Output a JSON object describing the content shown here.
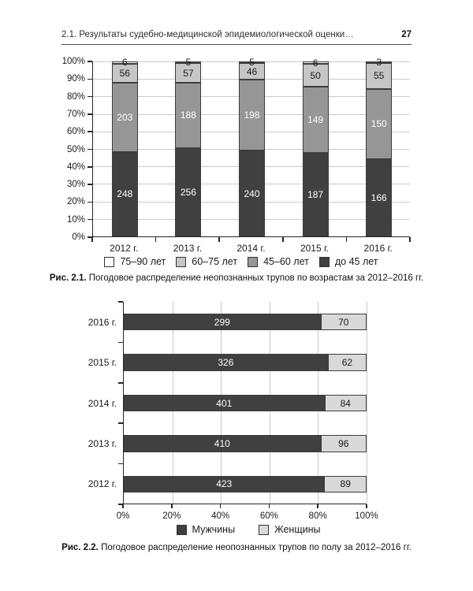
{
  "header": {
    "title": "2.1. Результаты судебно-медицинской эпидемиологической оценки…",
    "page_number": "27"
  },
  "captions": {
    "fig1_label": "Рис. 2.1.",
    "fig1_text": "Погодовое распределение неопознанных трупов по возрастам за 2012–2016 гг.",
    "fig2_label": "Рис. 2.2.",
    "fig2_text": "Погодовое распределение неопознанных трупов по полу за 2012–2016 гг."
  },
  "colors": {
    "dark": "#404040",
    "medium": "#969696",
    "light": "#c6c6c6",
    "white": "#ffffff",
    "female": "#d9d9d9",
    "gridline": "#cbcbcb",
    "axis": "#262626",
    "segment_border": "#3d3d3d"
  },
  "chart_data": [
    {
      "type": "bar",
      "variant": "stacked-100-vertical",
      "title": "",
      "categories": [
        "2012 г.",
        "2013 г.",
        "2014 г.",
        "2015 г.",
        "2016 г."
      ],
      "series": [
        {
          "name": "до 45 лет",
          "color": "#404040",
          "label_color": "#ffffff",
          "values": [
            248,
            256,
            240,
            187,
            166
          ]
        },
        {
          "name": "45–60 лет",
          "color": "#969696",
          "label_color": "#ffffff",
          "values": [
            203,
            188,
            198,
            149,
            150
          ]
        },
        {
          "name": "60–75 лет",
          "color": "#c6c6c6",
          "label_color": "#1a1a1a",
          "values": [
            56,
            57,
            46,
            50,
            55
          ]
        },
        {
          "name": "75–90 лет",
          "color": "#ffffff",
          "label_color": "#1a1a1a",
          "values": [
            6,
            5,
            5,
            6,
            3
          ]
        }
      ],
      "y_axis": {
        "ticks": [
          "0%",
          "10%",
          "20%",
          "30%",
          "40%",
          "50%",
          "60%",
          "70%",
          "80%",
          "90%",
          "100%"
        ],
        "min": 0,
        "max": 100,
        "grid": true
      },
      "legend": {
        "position": "bottom",
        "order_reversed": true,
        "labels": [
          "75–90 лет",
          "60–75 лет",
          "45–60 лет",
          "до 45 лет"
        ]
      }
    },
    {
      "type": "bar",
      "variant": "stacked-100-horizontal",
      "title": "",
      "categories": [
        "2016 г.",
        "2015 г.",
        "2014 г.",
        "2013 г.",
        "2012 г."
      ],
      "series": [
        {
          "name": "Мужчины",
          "color": "#404040",
          "label_color": "#ffffff",
          "values": [
            299,
            326,
            401,
            410,
            423
          ]
        },
        {
          "name": "Женщины",
          "color": "#d9d9d9",
          "label_color": "#1a1a1a",
          "values": [
            70,
            62,
            84,
            96,
            89
          ]
        }
      ],
      "x_axis": {
        "ticks": [
          "0%",
          "20%",
          "40%",
          "60%",
          "80%",
          "100%"
        ],
        "min": 0,
        "max": 100,
        "grid": true
      },
      "legend": {
        "position": "bottom",
        "order_reversed": false,
        "labels": [
          "Мужчины",
          "Женщины"
        ]
      }
    }
  ]
}
